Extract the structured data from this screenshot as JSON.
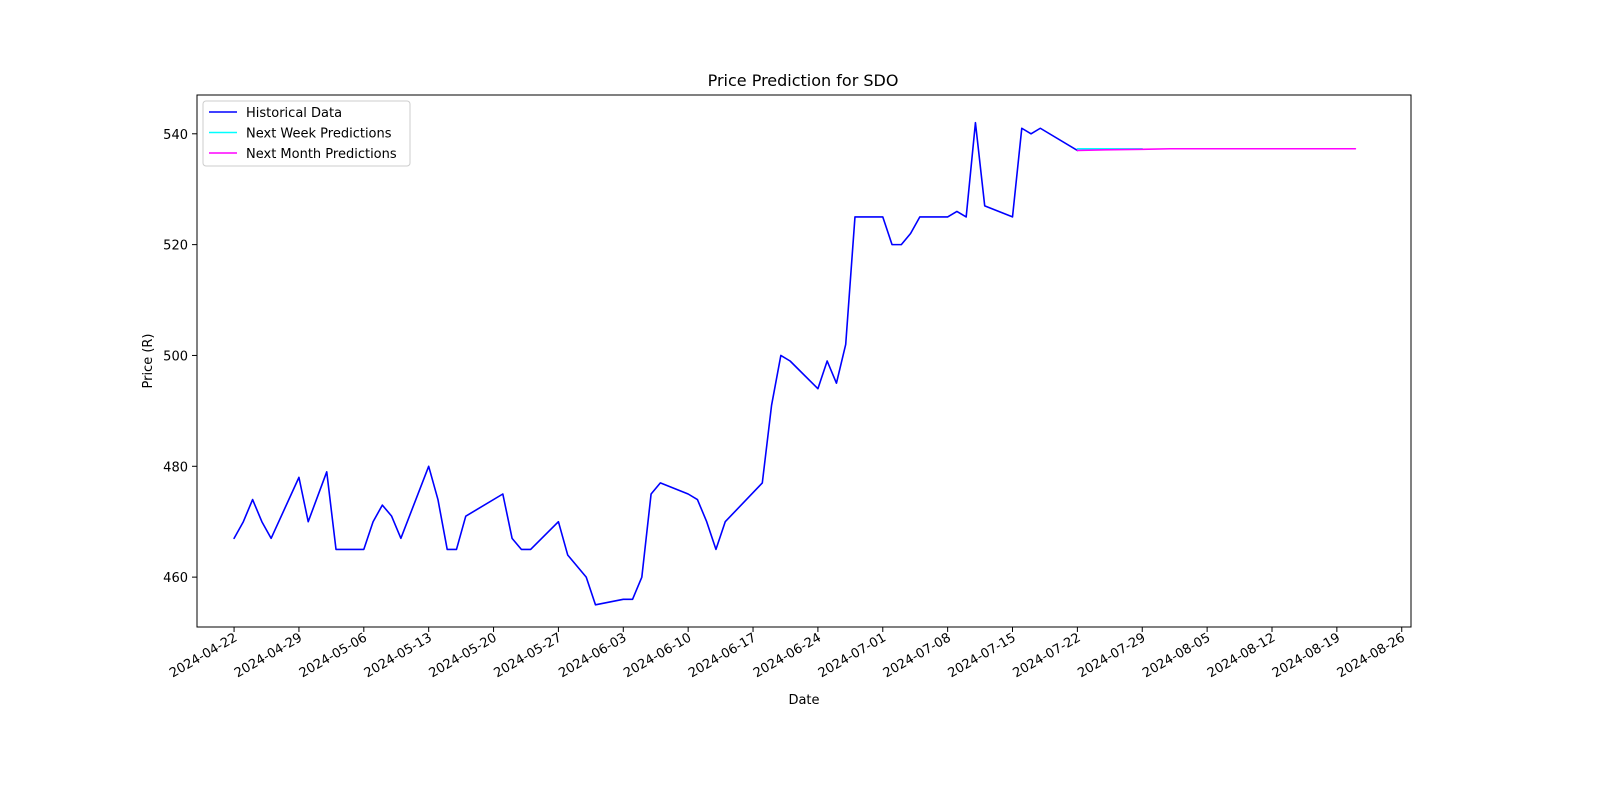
{
  "chart_data": {
    "type": "line",
    "title": "Price Prediction for SDO",
    "xlabel": "Date",
    "ylabel": "Price (R)",
    "xlim": [
      "2024-04-18",
      "2024-08-27"
    ],
    "ylim": [
      451,
      547
    ],
    "x_ticks": [
      "2024-04-22",
      "2024-04-29",
      "2024-05-06",
      "2024-05-13",
      "2024-05-20",
      "2024-05-27",
      "2024-06-03",
      "2024-06-10",
      "2024-06-17",
      "2024-06-24",
      "2024-07-01",
      "2024-07-08",
      "2024-07-15",
      "2024-07-22",
      "2024-07-29",
      "2024-08-05",
      "2024-08-12",
      "2024-08-19",
      "2024-08-26"
    ],
    "y_ticks": [
      "460",
      "480",
      "500",
      "520",
      "540"
    ],
    "grid": false,
    "legend_position": "top-left",
    "series": [
      {
        "name": "Historical Data",
        "color": "#0000ff",
        "points": [
          [
            "2024-04-22",
            467
          ],
          [
            "2024-04-23",
            470
          ],
          [
            "2024-04-24",
            474
          ],
          [
            "2024-04-25",
            470
          ],
          [
            "2024-04-26",
            467
          ],
          [
            "2024-04-29",
            478
          ],
          [
            "2024-04-30",
            470
          ],
          [
            "2024-05-02",
            479
          ],
          [
            "2024-05-03",
            465
          ],
          [
            "2024-05-06",
            465
          ],
          [
            "2024-05-07",
            470
          ],
          [
            "2024-05-08",
            473
          ],
          [
            "2024-05-09",
            471
          ],
          [
            "2024-05-10",
            467
          ],
          [
            "2024-05-13",
            480
          ],
          [
            "2024-05-14",
            474
          ],
          [
            "2024-05-15",
            465
          ],
          [
            "2024-05-16",
            465
          ],
          [
            "2024-05-17",
            471
          ],
          [
            "2024-05-21",
            475
          ],
          [
            "2024-05-22",
            467
          ],
          [
            "2024-05-23",
            465
          ],
          [
            "2024-05-24",
            465
          ],
          [
            "2024-05-27",
            470
          ],
          [
            "2024-05-28",
            464
          ],
          [
            "2024-05-30",
            460
          ],
          [
            "2024-05-31",
            455
          ],
          [
            "2024-06-03",
            456
          ],
          [
            "2024-06-04",
            456
          ],
          [
            "2024-06-05",
            460
          ],
          [
            "2024-06-06",
            475
          ],
          [
            "2024-06-07",
            477
          ],
          [
            "2024-06-10",
            475
          ],
          [
            "2024-06-11",
            474
          ],
          [
            "2024-06-12",
            470
          ],
          [
            "2024-06-13",
            465
          ],
          [
            "2024-06-14",
            470
          ],
          [
            "2024-06-18",
            477
          ],
          [
            "2024-06-19",
            491
          ],
          [
            "2024-06-20",
            500
          ],
          [
            "2024-06-21",
            499
          ],
          [
            "2024-06-24",
            494
          ],
          [
            "2024-06-25",
            499
          ],
          [
            "2024-06-26",
            495
          ],
          [
            "2024-06-27",
            502
          ],
          [
            "2024-06-28",
            525
          ],
          [
            "2024-07-01",
            525
          ],
          [
            "2024-07-02",
            520
          ],
          [
            "2024-07-03",
            520
          ],
          [
            "2024-07-04",
            522
          ],
          [
            "2024-07-05",
            525
          ],
          [
            "2024-07-08",
            525
          ],
          [
            "2024-07-09",
            526
          ],
          [
            "2024-07-10",
            525
          ],
          [
            "2024-07-11",
            542
          ],
          [
            "2024-07-12",
            527
          ],
          [
            "2024-07-15",
            525
          ],
          [
            "2024-07-16",
            541
          ],
          [
            "2024-07-17",
            540
          ],
          [
            "2024-07-18",
            541
          ],
          [
            "2024-07-22",
            537
          ]
        ]
      },
      {
        "name": "Next Week Predictions",
        "color": "#00ffff",
        "points": [
          [
            "2024-07-22",
            537.3
          ],
          [
            "2024-07-23",
            537.3
          ],
          [
            "2024-07-24",
            537.3
          ],
          [
            "2024-07-25",
            537.3
          ],
          [
            "2024-07-26",
            537.3
          ],
          [
            "2024-07-27",
            537.3
          ],
          [
            "2024-07-28",
            537.3
          ],
          [
            "2024-07-29",
            537.3
          ]
        ]
      },
      {
        "name": "Next Month Predictions",
        "color": "#ff00ff",
        "points": [
          [
            "2024-07-22",
            537.0
          ],
          [
            "2024-07-25",
            537.1
          ],
          [
            "2024-07-29",
            537.2
          ],
          [
            "2024-08-01",
            537.3
          ],
          [
            "2024-08-05",
            537.3
          ],
          [
            "2024-08-12",
            537.3
          ],
          [
            "2024-08-19",
            537.3
          ],
          [
            "2024-08-21",
            537.3
          ]
        ]
      }
    ]
  }
}
